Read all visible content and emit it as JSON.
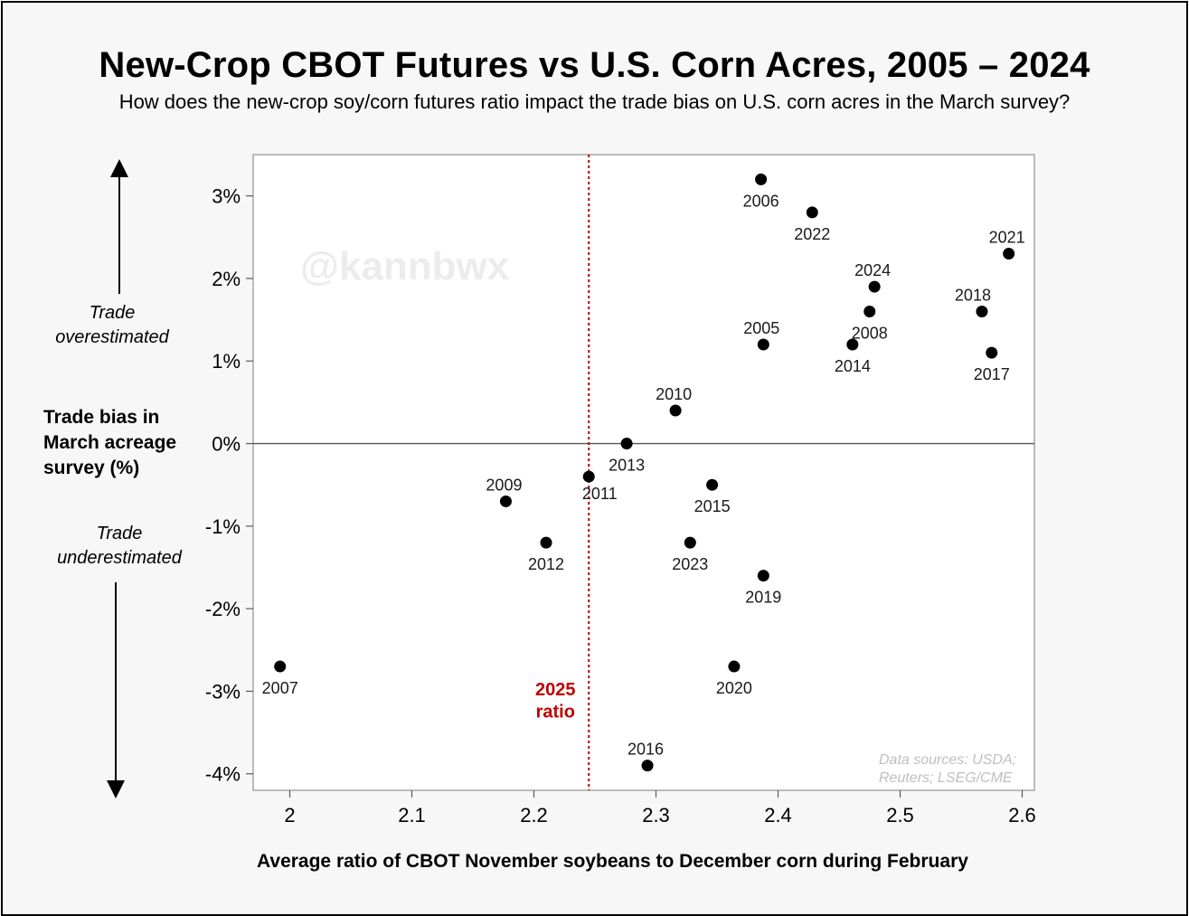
{
  "chart_data": {
    "type": "scatter",
    "title": "New-Crop CBOT Futures vs U.S. Corn Acres, 2005 – 2024",
    "subtitle": "How does the new-crop soy/corn futures ratio impact the trade bias on U.S. corn acres in the March survey?",
    "xlabel": "Average ratio of CBOT November soybeans to December corn during February",
    "ylabel": "Trade bias in March acreage survey (%)",
    "xlim": [
      1.97,
      2.61
    ],
    "ylim": [
      -4.2,
      3.5
    ],
    "x_ticks": [
      2,
      2.1,
      2.2,
      2.3,
      2.4,
      2.5,
      2.6
    ],
    "x_tick_labels": [
      "2",
      "2.1",
      "2.2",
      "2.3",
      "2.4",
      "2.5",
      "2.6"
    ],
    "y_ticks": [
      3,
      2,
      1,
      0,
      -1,
      -2,
      -3,
      -4
    ],
    "y_tick_labels": [
      "3%",
      "2%",
      "1%",
      "0%",
      "-1%",
      "-2%",
      "-3%",
      "-4%"
    ],
    "points": [
      {
        "label": "2005",
        "x": 2.388,
        "y": 1.2,
        "pos": "above"
      },
      {
        "label": "2006",
        "x": 2.386,
        "y": 3.2,
        "pos": "below"
      },
      {
        "label": "2007",
        "x": 1.992,
        "y": -2.7,
        "pos": "below"
      },
      {
        "label": "2008",
        "x": 2.475,
        "y": 1.6,
        "pos": "below"
      },
      {
        "label": "2009",
        "x": 2.177,
        "y": -0.7,
        "pos": "above"
      },
      {
        "label": "2010",
        "x": 2.316,
        "y": 0.4,
        "pos": "above"
      },
      {
        "label": "2011",
        "x": 2.245,
        "y": -0.4,
        "pos": "below-right"
      },
      {
        "label": "2012",
        "x": 2.21,
        "y": -1.2,
        "pos": "below"
      },
      {
        "label": "2013",
        "x": 2.276,
        "y": 0.0,
        "pos": "below"
      },
      {
        "label": "2014",
        "x": 2.461,
        "y": 1.2,
        "pos": "below"
      },
      {
        "label": "2015",
        "x": 2.346,
        "y": -0.5,
        "pos": "below"
      },
      {
        "label": "2016",
        "x": 2.293,
        "y": -3.9,
        "pos": "above"
      },
      {
        "label": "2017",
        "x": 2.575,
        "y": 1.1,
        "pos": "below"
      },
      {
        "label": "2018",
        "x": 2.567,
        "y": 1.6,
        "pos": "above-left"
      },
      {
        "label": "2019",
        "x": 2.388,
        "y": -1.6,
        "pos": "below"
      },
      {
        "label": "2020",
        "x": 2.364,
        "y": -2.7,
        "pos": "below"
      },
      {
        "label": "2021",
        "x": 2.589,
        "y": 2.3,
        "pos": "above"
      },
      {
        "label": "2022",
        "x": 2.428,
        "y": 2.8,
        "pos": "below"
      },
      {
        "label": "2023",
        "x": 2.328,
        "y": -1.2,
        "pos": "below"
      },
      {
        "label": "2024",
        "x": 2.479,
        "y": 1.9,
        "pos": "above"
      }
    ],
    "reference_line": {
      "x": 2.245,
      "label_line1": "2025",
      "label_line2": "ratio",
      "color": "#c00000"
    },
    "grid": false,
    "legend": "none"
  },
  "annotations": {
    "trade_over": [
      "Trade",
      "overestimated"
    ],
    "trade_under": [
      "Trade",
      "underestimated"
    ],
    "watermark": "@kannbwx",
    "sources_line1": "Data sources: USDA;",
    "sources_line2": "Reuters; LSEG/CME"
  },
  "ylabel_lines": [
    "Trade bias in",
    "March acreage",
    "survey (%)"
  ],
  "colors": {
    "points": "#000000",
    "reference": "#c00000",
    "sources": "#bfbfbf",
    "watermark": "#ececec"
  }
}
